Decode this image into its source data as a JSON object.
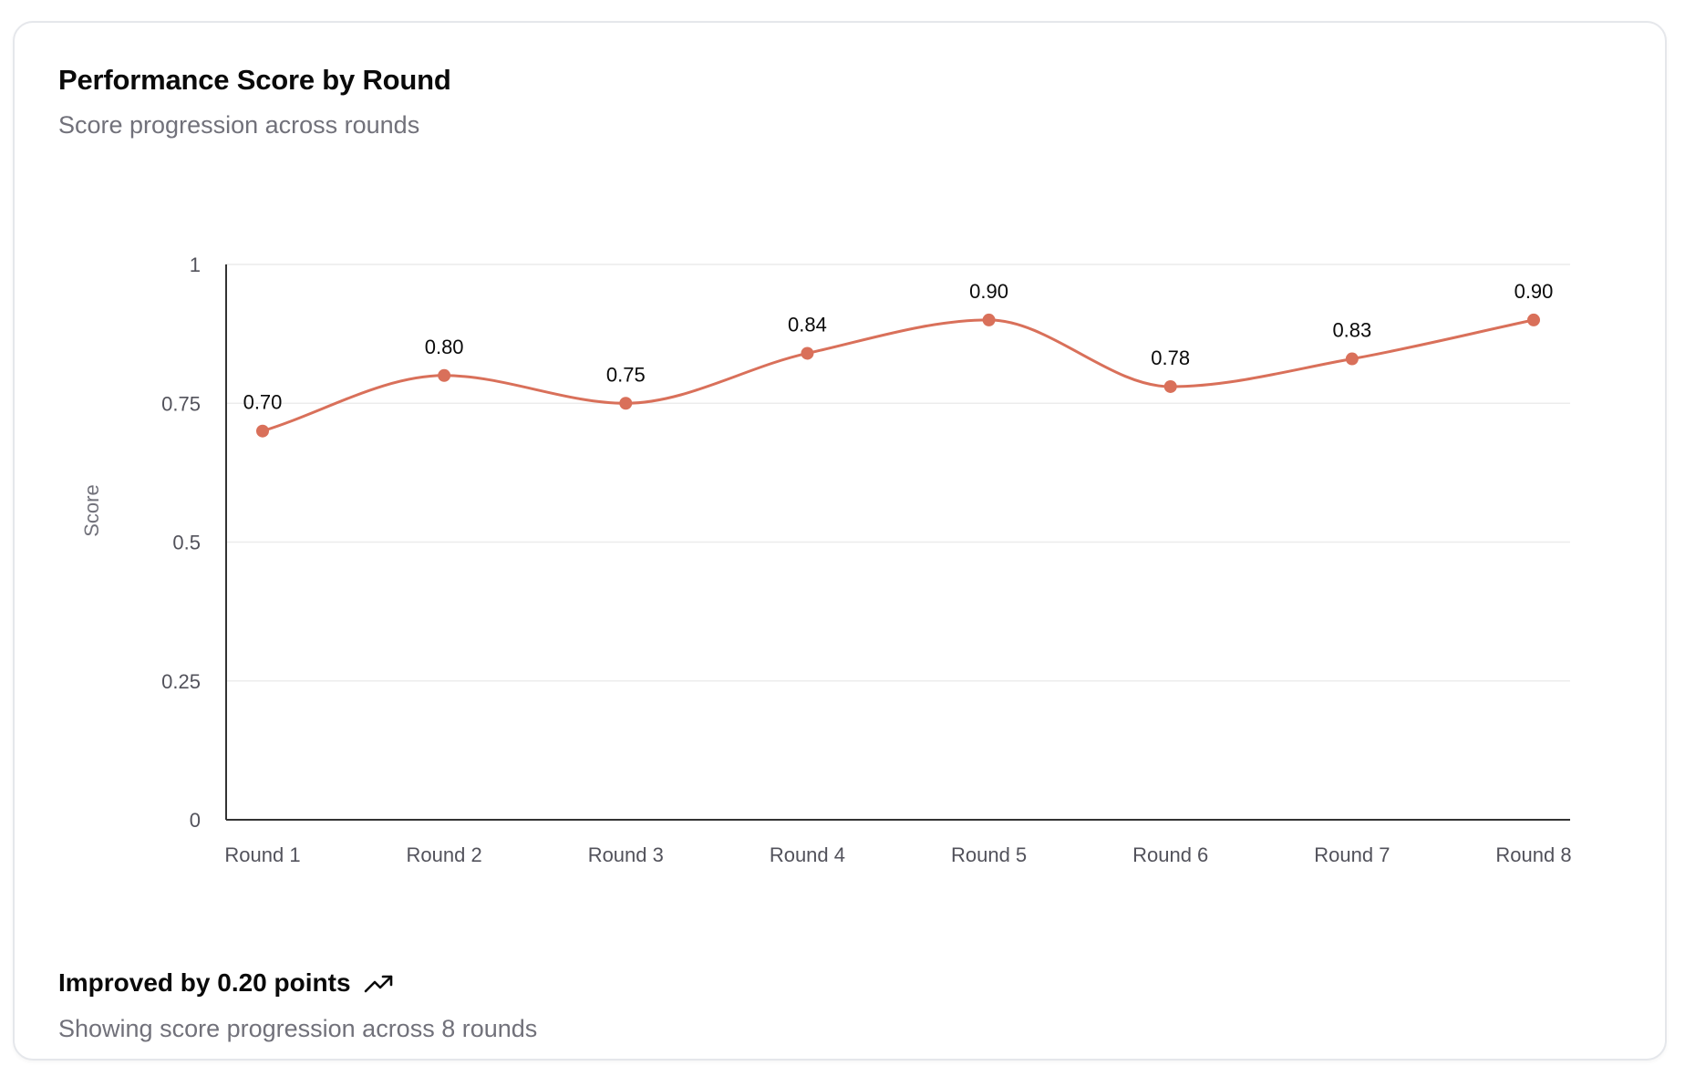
{
  "card": {
    "title": "Performance Score by Round",
    "subtitle": "Score progression across rounds"
  },
  "footer": {
    "headline": "Improved by 0.20 points",
    "trend_icon": "trending-up-icon",
    "caption": "Showing score progression across 8 rounds"
  },
  "colors": {
    "line": "#d9705a",
    "grid": "#ececec",
    "axis": "#333333"
  },
  "chart_data": {
    "type": "line",
    "title": "Performance Score by Round",
    "subtitle": "Score progression across rounds",
    "xlabel": "",
    "ylabel": "Score",
    "categories": [
      "Round 1",
      "Round 2",
      "Round 3",
      "Round 4",
      "Round 5",
      "Round 6",
      "Round 7",
      "Round 8"
    ],
    "series": [
      {
        "values": [
          0.7,
          0.8,
          0.75,
          0.84,
          0.9,
          0.78,
          0.83,
          0.9
        ],
        "data_labels": [
          "0.70",
          "0.80",
          "0.75",
          "0.84",
          "0.90",
          "0.78",
          "0.83",
          "0.90"
        ]
      }
    ],
    "ylim": [
      0,
      1
    ],
    "yticks": [
      0,
      0.25,
      0.5,
      0.75,
      1
    ],
    "ytick_labels": [
      "0",
      "0.25",
      "0.5",
      "0.75",
      "1"
    ],
    "grid": true,
    "curve": "smooth",
    "markers": true
  }
}
